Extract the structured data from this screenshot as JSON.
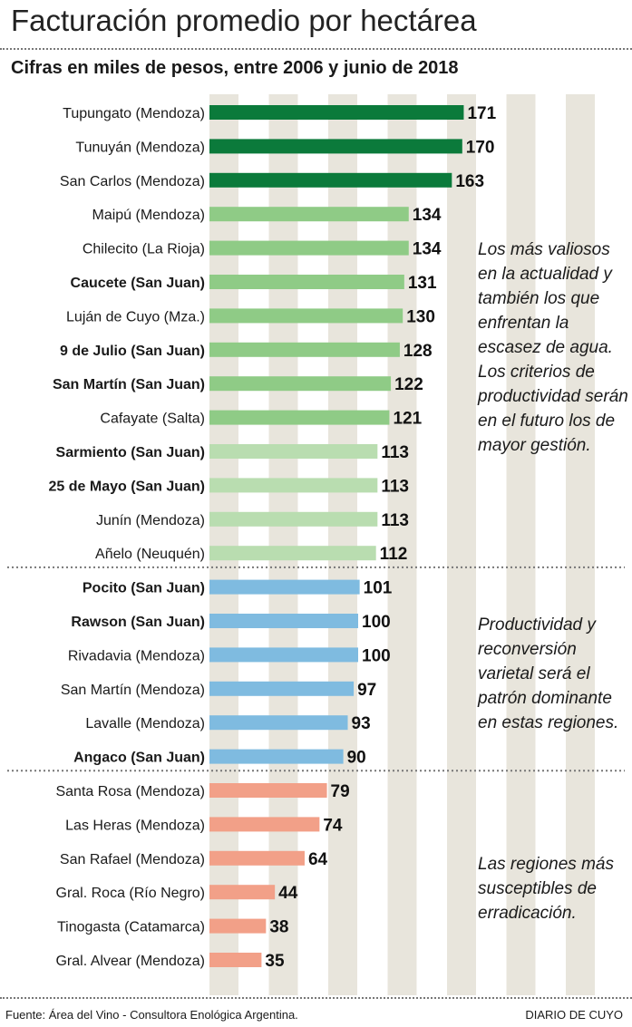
{
  "title": "Facturación promedio por hectárea",
  "subtitle": "Cifras en miles de pesos, entre 2006 y junio de 2018",
  "notes": {
    "group1": "Los más valiosos en la actualidad y también los que enfrentan la escasez de agua. Los criterios de productividad serán en el futuro los de mayor gestión.",
    "group2": "Productividad y reconversión varietal será el patrón dominante en estas regiones.",
    "group3": "Las regiones más susceptibles de erradicación."
  },
  "footer": {
    "source": "Fuente: Área del Vino - Consultora Enológica Argentina.",
    "brand": "DIARIO DE CUYO"
  },
  "colors": {
    "dark_green": "#0b7a3b",
    "mid_green": "#8fcb86",
    "light_green": "#b9ddb0",
    "blue": "#7fbbe0",
    "salmon": "#f2a088",
    "column_bg": "#e8e5dc"
  },
  "chart_data": {
    "type": "bar",
    "orientation": "horizontal",
    "title": "Facturación promedio por hectárea",
    "subtitle": "Cifras en miles de pesos, entre 2006 y junio de 2018",
    "unit": "miles de pesos",
    "xlim": [
      0,
      200
    ],
    "grid": "alternating vertical columns",
    "categories": [
      {
        "label": "Tupungato (Mendoza)",
        "value": 171,
        "bold": false,
        "color": "dark_green",
        "group": 1
      },
      {
        "label": "Tunuyán (Mendoza)",
        "value": 170,
        "bold": false,
        "color": "dark_green",
        "group": 1
      },
      {
        "label": "San Carlos (Mendoza)",
        "value": 163,
        "bold": false,
        "color": "dark_green",
        "group": 1
      },
      {
        "label": "Maipú (Mendoza)",
        "value": 134,
        "bold": false,
        "color": "mid_green",
        "group": 1
      },
      {
        "label": "Chilecito (La Rioja)",
        "value": 134,
        "bold": false,
        "color": "mid_green",
        "group": 1
      },
      {
        "label": "Caucete (San Juan)",
        "value": 131,
        "bold": true,
        "color": "mid_green",
        "group": 1
      },
      {
        "label": "Luján de Cuyo (Mza.)",
        "value": 130,
        "bold": false,
        "color": "mid_green",
        "group": 1
      },
      {
        "label": "9 de Julio (San Juan)",
        "value": 128,
        "bold": true,
        "color": "mid_green",
        "group": 1
      },
      {
        "label": "San Martín (San Juan)",
        "value": 122,
        "bold": true,
        "color": "mid_green",
        "group": 1
      },
      {
        "label": "Cafayate (Salta)",
        "value": 121,
        "bold": false,
        "color": "mid_green",
        "group": 1
      },
      {
        "label": "Sarmiento (San Juan)",
        "value": 113,
        "bold": true,
        "color": "light_green",
        "group": 1
      },
      {
        "label": "25 de Mayo (San Juan)",
        "value": 113,
        "bold": true,
        "color": "light_green",
        "group": 1
      },
      {
        "label": "Junín (Mendoza)",
        "value": 113,
        "bold": false,
        "color": "light_green",
        "group": 1
      },
      {
        "label": "Añelo (Neuquén)",
        "value": 112,
        "bold": false,
        "color": "light_green",
        "group": 1
      },
      {
        "label": "Pocito (San Juan)",
        "value": 101,
        "bold": true,
        "color": "blue",
        "group": 2
      },
      {
        "label": "Rawson (San Juan)",
        "value": 100,
        "bold": true,
        "color": "blue",
        "group": 2
      },
      {
        "label": "Rivadavia (Mendoza)",
        "value": 100,
        "bold": false,
        "color": "blue",
        "group": 2
      },
      {
        "label": "San Martín (Mendoza)",
        "value": 97,
        "bold": false,
        "color": "blue",
        "group": 2
      },
      {
        "label": "Lavalle (Mendoza)",
        "value": 93,
        "bold": false,
        "color": "blue",
        "group": 2
      },
      {
        "label": "Angaco (San Juan)",
        "value": 90,
        "bold": true,
        "color": "blue",
        "group": 2
      },
      {
        "label": "Santa Rosa (Mendoza)",
        "value": 79,
        "bold": false,
        "color": "salmon",
        "group": 3
      },
      {
        "label": "Las Heras (Mendoza)",
        "value": 74,
        "bold": false,
        "color": "salmon",
        "group": 3
      },
      {
        "label": "San Rafael (Mendoza)",
        "value": 64,
        "bold": false,
        "color": "salmon",
        "group": 3
      },
      {
        "label": "Gral. Roca (Río Negro)",
        "value": 44,
        "bold": false,
        "color": "salmon",
        "group": 3
      },
      {
        "label": "Tinogasta (Catamarca)",
        "value": 38,
        "bold": false,
        "color": "salmon",
        "group": 3
      },
      {
        "label": "Gral. Alvear (Mendoza)",
        "value": 35,
        "bold": false,
        "color": "salmon",
        "group": 3
      }
    ]
  }
}
